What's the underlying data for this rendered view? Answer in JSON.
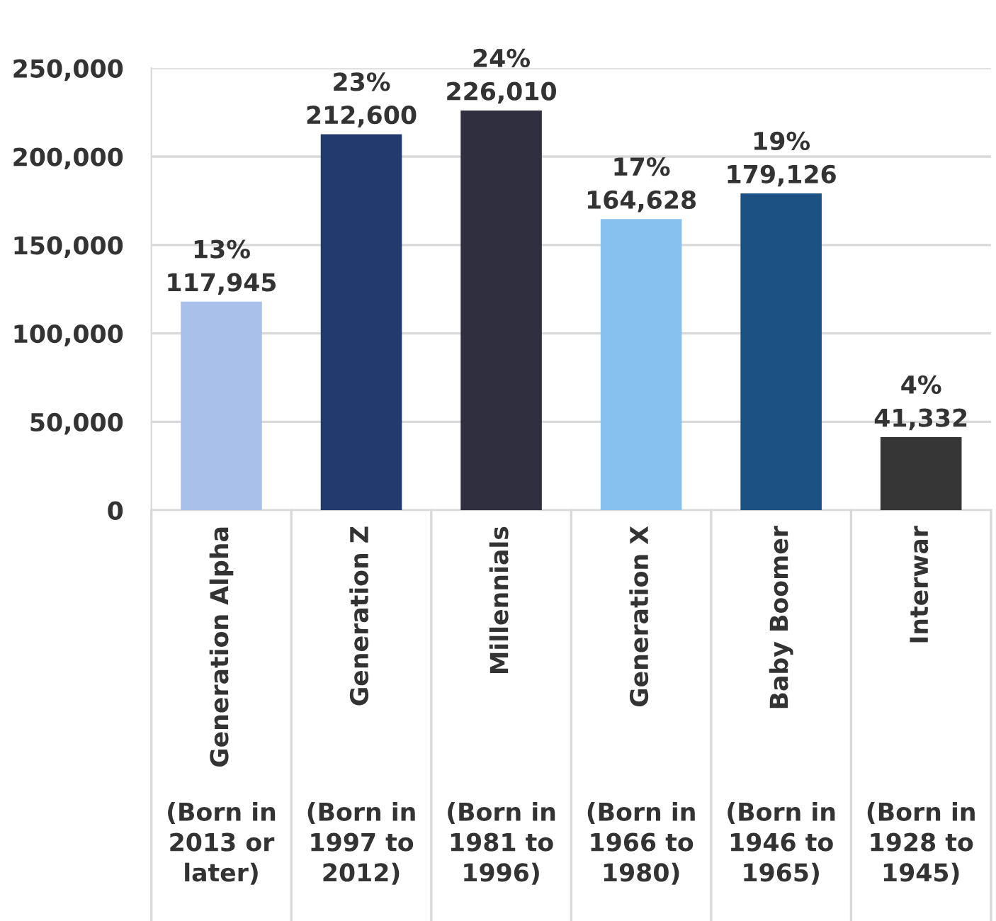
{
  "chart_data": {
    "type": "bar",
    "categories": [
      "Generation Alpha\n(Born in\n2013 or\nlater)",
      "Generation Z\n(Born in\n1997 to\n2012)",
      "Millennials\n(Born in\n1981 to\n1996)",
      "Generation X\n(Born in\n1966 to\n1980)",
      "Baby Boomer\n(Born in\n1946 to\n1965)",
      "Interwar\n(Born in\n1928 to\n1945)"
    ],
    "values": [
      117945,
      212600,
      226010,
      164628,
      179126,
      41332
    ],
    "colors": [
      "#a9c0ea",
      "#233a6e",
      "#2f2f40",
      "#86c1f0",
      "#1b5283",
      "#363636"
    ],
    "value_labels": [
      "13%\n117,945",
      "23%\n212,600",
      "24%\n226,010",
      "17%\n164,628",
      "19%\n179,126",
      "4%\n41,332"
    ],
    "ylim": [
      0,
      250000
    ],
    "yticks": [
      {
        "value": 0,
        "label": "0"
      },
      {
        "value": 50000,
        "label": "50,000"
      },
      {
        "value": 100000,
        "label": "100,000"
      },
      {
        "value": 150000,
        "label": "150,000"
      },
      {
        "value": 200000,
        "label": "200,000"
      },
      {
        "value": 250000,
        "label": "250,000"
      }
    ],
    "grid": "y"
  }
}
